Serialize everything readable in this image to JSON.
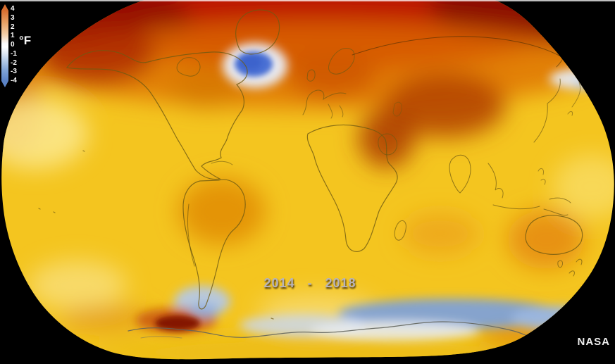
{
  "frame": {
    "background_color": "#000000",
    "top_line_color": "#ffffff"
  },
  "map": {
    "description": "Global surface temperature anomaly world map, oval projection",
    "period_label": "2014 - 2018",
    "credit": "NASA",
    "base_ocean_color": "#f4c51f",
    "coastline_color": "#6f5a12"
  },
  "legend": {
    "unit": "°F",
    "ticks": [
      "4",
      "3",
      "2",
      "1",
      "0",
      "-1",
      "-2",
      "-3",
      "-4"
    ],
    "gradient_top_color": "#d96f30",
    "gradient_mid_color": "#ffffff",
    "gradient_bottom_color": "#5b83c6"
  },
  "chart_data": {
    "type": "heatmap",
    "title": "2014 - 2018 global temperature anomaly",
    "unit": "°F",
    "scale_range": [
      -4,
      4
    ],
    "scale_ticks": [
      4,
      3,
      2,
      1,
      0,
      -1,
      -2,
      -3,
      -4
    ],
    "legend_position": "top-left",
    "regions": [
      {
        "region": "Arctic",
        "anomaly_f": 4.0
      },
      {
        "region": "Siberia / northern Russia",
        "anomaly_f": 3.5
      },
      {
        "region": "Alaska / northwest Canada",
        "anomaly_f": 3.5
      },
      {
        "region": "Europe",
        "anomaly_f": 2.5
      },
      {
        "region": "Central Asia / Tibetan Plateau",
        "anomaly_f": 2.5
      },
      {
        "region": "Middle East / Arabian Peninsula",
        "anomaly_f": 2.5
      },
      {
        "region": "Eastern North America",
        "anomaly_f": 2.0
      },
      {
        "region": "Brazil / central South America",
        "anomaly_f": 1.5
      },
      {
        "region": "Eastern Australia",
        "anomaly_f": 1.5
      },
      {
        "region": "Tropical oceans",
        "anomaly_f": 1.0
      },
      {
        "region": "North Atlantic south of Greenland",
        "anomaly_f": -1.5
      },
      {
        "region": "Southern Ocean",
        "anomaly_f": -1.0
      },
      {
        "region": "Antarctic Peninsula area",
        "anomaly_f": 3.5
      }
    ]
  }
}
